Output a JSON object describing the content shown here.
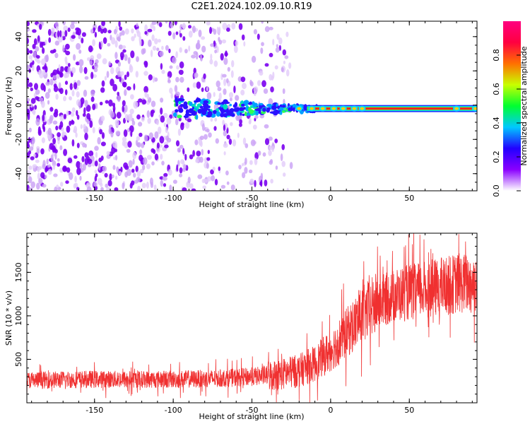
{
  "title": "C2E1.2024.102.09.10.R19",
  "chart_data": [
    {
      "type": "heatmap",
      "title": "",
      "xlabel": "Height of straight line (km)",
      "ylabel": "Frequency (Hz)",
      "xlim": [
        -193,
        93
      ],
      "ylim": [
        -50,
        49
      ],
      "x_ticks": [
        -150,
        -100,
        -50,
        0,
        50
      ],
      "y_ticks": [
        -40,
        -20,
        0,
        20,
        40
      ],
      "signal_track": {
        "description_value_hz": -2,
        "x_start": -100,
        "x_end": 93,
        "noise_region_x_end": -25
      },
      "colorbar": {
        "label": "Normalized spectral amplitude",
        "range": [
          0,
          1
        ],
        "ticks": [
          "0.0",
          "0.2",
          "0.4",
          "0.6",
          "0.8"
        ],
        "colors": [
          "#ffffff",
          "#8a00ff",
          "#2200ff",
          "#00c8ff",
          "#00ff30",
          "#c8ff00",
          "#ff7000",
          "#ff0040",
          "#ff0080"
        ]
      }
    },
    {
      "type": "line",
      "title": "",
      "xlabel": "Height of straight line (km)",
      "ylabel": "SNR (10 * v/v)",
      "xlim": [
        -193,
        93
      ],
      "ylim": [
        0,
        1950
      ],
      "x_ticks": [
        -150,
        -100,
        -50,
        0,
        50
      ],
      "y_ticks": [
        500,
        1000,
        1500
      ],
      "color": "#f03030",
      "series": [
        {
          "name": "",
          "x": [
            -193,
            -150,
            -100,
            -70,
            -50,
            -30,
            -20,
            -10,
            0,
            10,
            20,
            30,
            40,
            50,
            60,
            70,
            80,
            93
          ],
          "y": [
            260,
            270,
            270,
            280,
            300,
            330,
            370,
            450,
            600,
            800,
            1000,
            1150,
            1230,
            1270,
            1300,
            1330,
            1370,
            1380
          ]
        }
      ]
    }
  ]
}
